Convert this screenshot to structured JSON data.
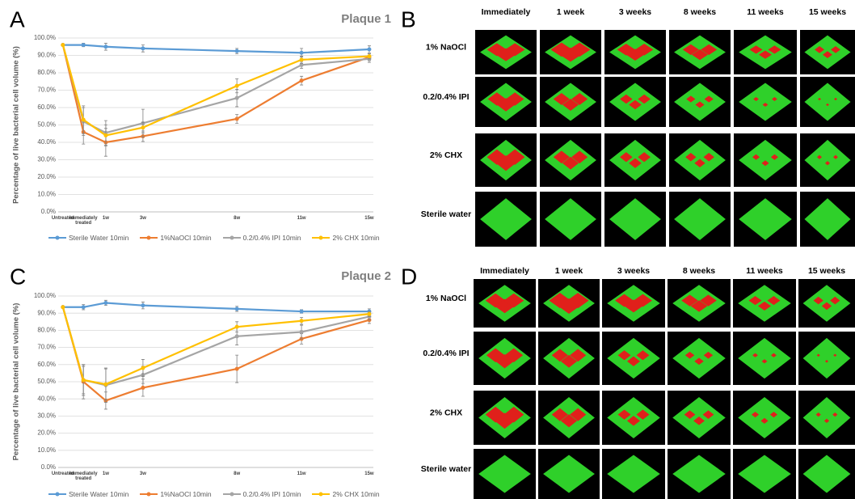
{
  "chart_data": [
    {
      "type": "line",
      "panel": "A",
      "title": "Plaque 1",
      "y_label": "Percentage of live bacterial cell volume (%)",
      "categories": [
        "Untreated",
        "Immediately treated",
        "1w",
        "3w",
        "8w",
        "11w",
        "15w"
      ],
      "series": [
        {
          "name": "Sterile Water 10min",
          "color": "#5b9bd5",
          "values": [
            96,
            96,
            95,
            94,
            92.5,
            91.5,
            93.5
          ],
          "errors": [
            0,
            1,
            2,
            2,
            1.5,
            2.5,
            2
          ]
        },
        {
          "name": "1%NaOCl 10min",
          "color": "#ed7d31",
          "values": [
            96,
            46,
            40,
            43.5,
            53.5,
            75.5,
            89
          ],
          "errors": [
            0,
            7,
            8,
            3,
            2.5,
            2.5,
            2
          ]
        },
        {
          "name": "0.2/0.4% IPI 10min",
          "color": "#a5a5a5",
          "values": [
            96,
            52,
            45.5,
            51,
            65.5,
            84.5,
            88
          ],
          "errors": [
            0,
            8,
            7,
            8,
            5,
            2,
            2
          ]
        },
        {
          "name": "2% CHX 10min",
          "color": "#ffc000",
          "values": [
            96,
            53,
            44,
            48.5,
            72.5,
            87.5,
            89.5
          ],
          "errors": [
            0,
            8,
            6,
            3,
            4,
            2,
            1.5
          ]
        }
      ],
      "ylim": [
        0,
        100
      ],
      "yticks": [
        {
          "value": 0,
          "label": "0.0%"
        },
        {
          "value": 10,
          "label": "10.0%"
        },
        {
          "value": 20,
          "label": "20.0%"
        },
        {
          "value": 30,
          "label": "30.0%"
        },
        {
          "value": 40,
          "label": "40.0%"
        },
        {
          "value": 50,
          "label": "50.0%"
        },
        {
          "value": 60,
          "label": "60.0%"
        },
        {
          "value": 70,
          "label": "70.0%"
        },
        {
          "value": 80,
          "label": "80.0%"
        },
        {
          "value": 90,
          "label": "90.0%"
        },
        {
          "value": 100,
          "label": "100.0%"
        }
      ],
      "grid": true
    },
    {
      "type": "line",
      "panel": "C",
      "title": "Plaque 2",
      "y_label": "Percentage of live bacterial cell volume (%)",
      "categories": [
        "Untreated",
        "Immediately treated",
        "1w",
        "3w",
        "8w",
        "11w",
        "15w"
      ],
      "series": [
        {
          "name": "Sterile Water 10min",
          "color": "#5b9bd5",
          "values": [
            93.5,
            93.5,
            96,
            94.5,
            92.5,
            91,
            91
          ],
          "errors": [
            0,
            1.5,
            1.5,
            2,
            1.5,
            1,
            1.5
          ]
        },
        {
          "name": "1%NaOCl 10min",
          "color": "#ed7d31",
          "values": [
            93.5,
            50,
            39,
            46.5,
            57.5,
            75,
            86
          ],
          "errors": [
            0,
            10,
            5,
            5,
            8,
            3,
            2
          ]
        },
        {
          "name": "0.2/0.4% IPI 10min",
          "color": "#a5a5a5",
          "values": [
            93.5,
            51,
            48,
            54,
            76.5,
            79,
            88
          ],
          "errors": [
            0,
            8,
            10,
            5,
            5,
            4,
            2
          ]
        },
        {
          "name": "2% CHX 10min",
          "color": "#ffc000",
          "values": [
            93.5,
            51,
            48.5,
            58,
            82,
            85.5,
            89.5
          ],
          "errors": [
            0,
            9,
            9,
            5,
            3,
            2,
            1.5
          ]
        }
      ],
      "ylim": [
        0,
        100
      ],
      "yticks": [
        {
          "value": 0,
          "label": "0.0%"
        },
        {
          "value": 10,
          "label": "10.0%"
        },
        {
          "value": 20,
          "label": "20.0%"
        },
        {
          "value": 30,
          "label": "30.0%"
        },
        {
          "value": 40,
          "label": "40.0%"
        },
        {
          "value": 50,
          "label": "50.0%"
        },
        {
          "value": 60,
          "label": "60.0%"
        },
        {
          "value": 70,
          "label": "70.0%"
        },
        {
          "value": 80,
          "label": "80.0%"
        },
        {
          "value": 90,
          "label": "90.0%"
        },
        {
          "value": 100,
          "label": "100.0%"
        }
      ],
      "grid": true
    }
  ],
  "image_panels": [
    {
      "panel": "B",
      "columns": [
        "Immediately",
        "1 week",
        "3 weeks",
        "8 weeks",
        "11 weeks",
        "15 weeks"
      ],
      "rows": [
        "1% NaOCl",
        "0.2/0.4% IPI",
        "2% CHX",
        "Sterile water"
      ]
    },
    {
      "panel": "D",
      "columns": [
        "Immediately",
        "1 week",
        "3 weeks",
        "8 weeks",
        "11 weeks",
        "15 weeks"
      ],
      "rows": [
        "1% NaOCl",
        "0.2/0.4% IPI",
        "2% CHX",
        "Sterile water"
      ]
    }
  ]
}
